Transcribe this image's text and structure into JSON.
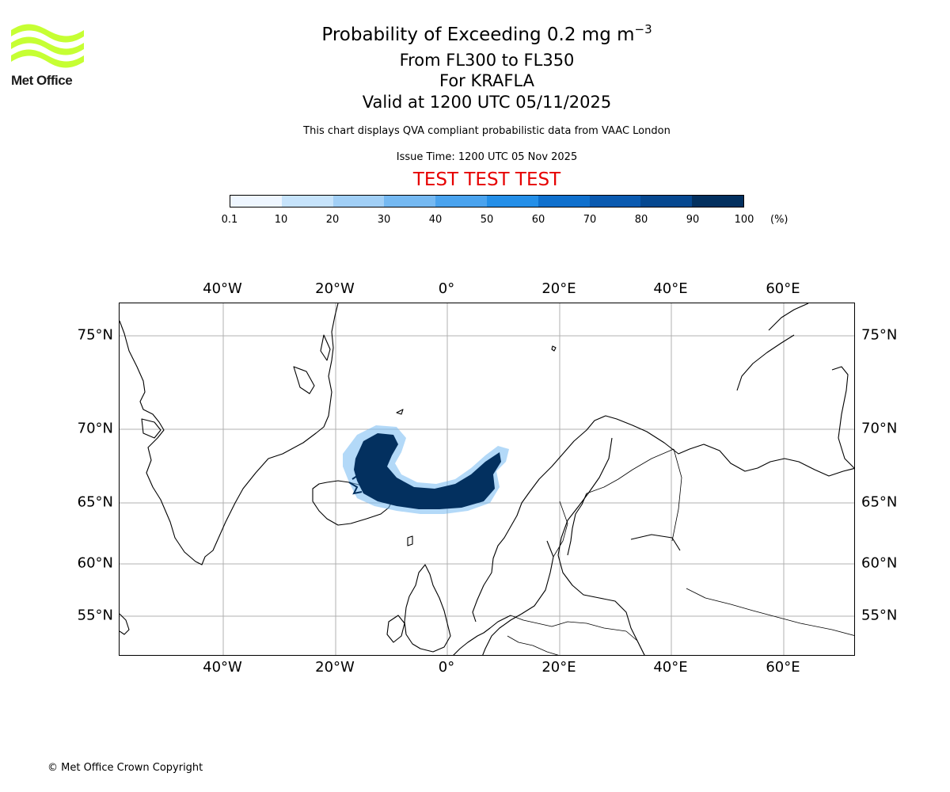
{
  "logo": {
    "text": "Met Office",
    "color": "#c6ff33"
  },
  "title": {
    "line1_prefix": "Probability of Exceeding 0.2 mg m",
    "line1_sup": "−3",
    "line2": "From FL300 to FL350",
    "line3": "For KRAFLA",
    "line4": "Valid at 1200 UTC 05/11/2025",
    "note": "This chart displays QVA compliant probabilistic data from VAAC London",
    "issue_time": "Issue Time: 1200 UTC 05 Nov 2025",
    "test_banner": "TEST TEST TEST",
    "test_color": "#e60000"
  },
  "colorbar": {
    "ticks": [
      "0.1",
      "10",
      "20",
      "30",
      "40",
      "50",
      "60",
      "70",
      "80",
      "90",
      "100"
    ],
    "unit": "(%)",
    "colors": [
      "#eef6ff",
      "#c6e3fb",
      "#a1cff6",
      "#75b9f2",
      "#4aa3ee",
      "#248fe8",
      "#0f70cd",
      "#0a5ab0",
      "#064890",
      "#03305f"
    ]
  },
  "map": {
    "lon_labels": [
      "40°W",
      "20°W",
      "0°",
      "20°E",
      "40°E",
      "60°E"
    ],
    "lat_labels": [
      "75°N",
      "70°N",
      "65°N",
      "60°N",
      "55°N"
    ],
    "plume_color": "#03305f",
    "plume_edge_color": "#75b9f2"
  },
  "footer": {
    "copyright": "© Met Office Crown Copyright"
  }
}
